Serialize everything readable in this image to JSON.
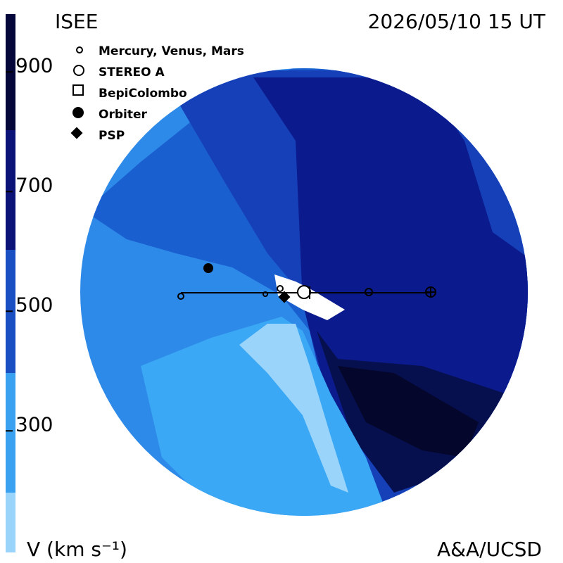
{
  "header": {
    "title": "ISEE",
    "date": "2026/05/10 15 UT"
  },
  "legend": [
    "Mercury, Venus, Mars",
    "STEREO A",
    "BepiColombo",
    "Orbiter",
    "PSP"
  ],
  "colorbar": {
    "label": "V (km s⁻¹)",
    "range": [
      85,
      985
    ],
    "ticks": [
      900,
      700,
      500,
      300
    ]
  },
  "credit": "A&A/UCSD"
}
